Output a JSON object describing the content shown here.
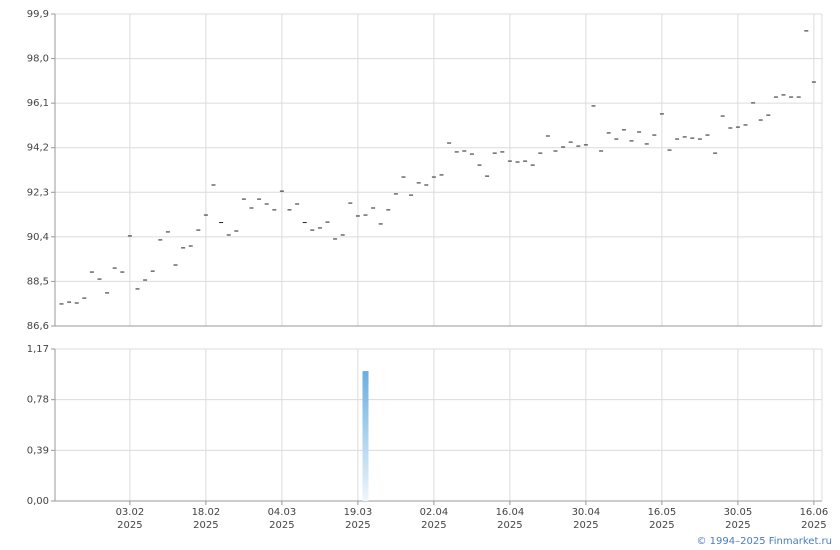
{
  "chart_data": [
    {
      "type": "scatter",
      "color": "#222222",
      "grid": true,
      "ylim": [
        86.6,
        99.9
      ],
      "yticks": [
        {
          "value": 86.6,
          "label": "86,6"
        },
        {
          "value": 88.5,
          "label": "88,5"
        },
        {
          "value": 90.4,
          "label": "90,4"
        },
        {
          "value": 92.3,
          "label": "92,3"
        },
        {
          "value": 94.2,
          "label": "94,2"
        },
        {
          "value": 96.1,
          "label": "96,1"
        },
        {
          "value": 98.0,
          "label": "98,0"
        },
        {
          "value": 99.9,
          "label": "99,9"
        }
      ],
      "values": [
        87.54,
        87.62,
        87.58,
        87.79,
        88.9,
        88.6,
        88.01,
        89.07,
        88.9,
        90.44,
        88.18,
        88.56,
        88.94,
        90.27,
        90.61,
        89.2,
        89.93,
        90.01,
        90.69,
        91.33,
        92.61,
        91.01,
        90.48,
        90.65,
        92.01,
        91.63,
        92.01,
        91.8,
        91.55,
        92.35,
        91.55,
        91.8,
        91.01,
        90.69,
        90.78,
        91.03,
        90.31,
        90.48,
        91.84,
        91.29,
        91.33,
        91.63,
        90.95,
        91.55,
        92.23,
        92.95,
        92.18,
        92.7,
        92.61,
        92.95,
        93.04,
        94.4,
        94.02,
        94.06,
        93.93,
        93.46,
        92.99,
        93.97,
        94.02,
        93.63,
        93.59,
        93.63,
        93.46,
        93.97,
        94.7,
        94.06,
        94.23,
        94.44,
        94.27,
        94.32,
        95.98,
        94.06,
        94.83,
        94.57,
        94.96,
        94.49,
        94.87,
        94.36,
        94.74,
        95.64,
        94.1,
        94.57,
        94.66,
        94.61,
        94.57,
        94.74,
        93.97,
        95.55,
        95.04,
        95.08,
        95.17,
        96.11,
        95.38,
        95.59,
        96.36,
        96.45,
        96.36,
        96.36,
        99.18,
        97.0
      ]
    },
    {
      "type": "bar",
      "color": "#6aaee0",
      "grid": true,
      "ylim": [
        0,
        1.17
      ],
      "yticks": [
        {
          "value": 0,
          "label": "0,00"
        },
        {
          "value": 0.39,
          "label": "0,39"
        },
        {
          "value": 0.78,
          "label": "0,78"
        },
        {
          "value": 1.17,
          "label": "1,17"
        }
      ],
      "categories": [
        null,
        null,
        null,
        null,
        null,
        null,
        null,
        null,
        null,
        "03.02 2025",
        null,
        null,
        null,
        null,
        null,
        null,
        null,
        null,
        null,
        "18.02 2025",
        null,
        null,
        null,
        null,
        null,
        null,
        null,
        null,
        null,
        "04.03 2025",
        null,
        null,
        null,
        null,
        null,
        null,
        null,
        null,
        null,
        "19.03 2025",
        null,
        null,
        null,
        null,
        null,
        null,
        null,
        null,
        null,
        "02.04 2025",
        null,
        null,
        null,
        null,
        null,
        null,
        null,
        null,
        null,
        "16.04 2025",
        null,
        null,
        null,
        null,
        null,
        null,
        null,
        null,
        null,
        "30.04 2025",
        null,
        null,
        null,
        null,
        null,
        null,
        null,
        null,
        null,
        "16.05 2025",
        null,
        null,
        null,
        null,
        null,
        null,
        null,
        null,
        null,
        "30.05 2025",
        null,
        null,
        null,
        null,
        null,
        null,
        null,
        null,
        null,
        "16.06 2025"
      ],
      "values": [
        0,
        0,
        0,
        0,
        0,
        0,
        0,
        0,
        0,
        0,
        0,
        0,
        0,
        0,
        0,
        0,
        0,
        0,
        0,
        0,
        0,
        0,
        0,
        0,
        0,
        0,
        0,
        0,
        0,
        0,
        0,
        0,
        0,
        0,
        0,
        0,
        0,
        0,
        0,
        0,
        1.0,
        0,
        0,
        0,
        0,
        0,
        0,
        0,
        0,
        0,
        0,
        0,
        0,
        0,
        0,
        0,
        0,
        0,
        0,
        0,
        0,
        0,
        0,
        0,
        0,
        0,
        0,
        0,
        0,
        0,
        0,
        0,
        0,
        0,
        0,
        0,
        0,
        0,
        0,
        0,
        0,
        0,
        0,
        0,
        0,
        0,
        0,
        0,
        0,
        0,
        0,
        0,
        0,
        0,
        0,
        0,
        0,
        0,
        0,
        0
      ]
    }
  ],
  "footer": "© 1994–2025 Finmarket.ru"
}
